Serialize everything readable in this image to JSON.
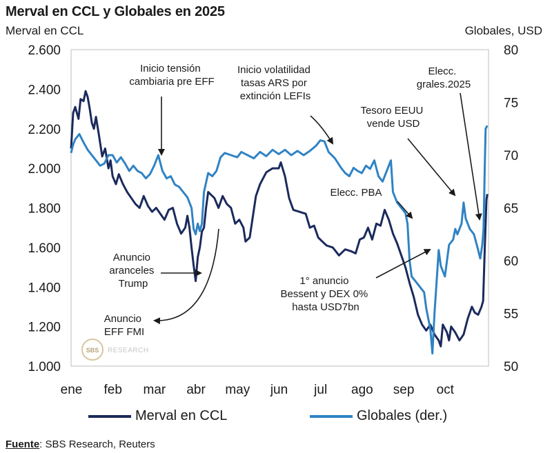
{
  "title": "Merval en CCL y Globales en 2025",
  "y_left_label": "Merval en CCL",
  "y_right_label": "Globales, USD",
  "source_label": "Fuente",
  "source_text": ": SBS Research, Reuters",
  "watermark": {
    "logo": "SBS",
    "text": "RESEARCH"
  },
  "colors": {
    "merval": "#1b2a5c",
    "globales": "#2f83c4",
    "axis": "#bdbdbd",
    "text": "#1a1a1a"
  },
  "chart_data": {
    "type": "line",
    "title": "Merval en CCL y Globales en 2025",
    "x_unit": "months since Jan 1, 2025",
    "xlim": [
      0,
      10.05
    ],
    "month_ticks": [
      {
        "label": "ene",
        "x": 0
      },
      {
        "label": "feb",
        "x": 1
      },
      {
        "label": "mar",
        "x": 2
      },
      {
        "label": "abr",
        "x": 3
      },
      {
        "label": "may",
        "x": 4
      },
      {
        "label": "jun",
        "x": 5
      },
      {
        "label": "jul",
        "x": 6
      },
      {
        "label": "ago",
        "x": 7
      },
      {
        "label": "sep",
        "x": 8
      },
      {
        "label": "oct",
        "x": 9
      }
    ],
    "y_left": {
      "label": "Merval en CCL",
      "ylim": [
        1000,
        2600
      ],
      "ticks": [
        "1.000",
        "1.200",
        "1.400",
        "1.600",
        "1.800",
        "2.000",
        "2.200",
        "2.400",
        "2.600"
      ],
      "tick_values": [
        1000,
        1200,
        1400,
        1600,
        1800,
        2000,
        2200,
        2400,
        2600
      ]
    },
    "y_right": {
      "label": "Globales, USD",
      "ylim": [
        50,
        80
      ],
      "ticks": [
        "50",
        "55",
        "60",
        "65",
        "70",
        "75",
        "80"
      ],
      "tick_values": [
        50,
        55,
        60,
        65,
        70,
        75,
        80
      ]
    },
    "series": [
      {
        "name": "Merval en CCL",
        "axis": "left",
        "legend": "Merval en CCL",
        "points": [
          [
            0,
            2100
          ],
          [
            0.05,
            2280
          ],
          [
            0.1,
            2310
          ],
          [
            0.18,
            2250
          ],
          [
            0.23,
            2350
          ],
          [
            0.3,
            2340
          ],
          [
            0.35,
            2390
          ],
          [
            0.4,
            2360
          ],
          [
            0.45,
            2300
          ],
          [
            0.5,
            2230
          ],
          [
            0.55,
            2200
          ],
          [
            0.6,
            2260
          ],
          [
            0.67,
            2170
          ],
          [
            0.75,
            2060
          ],
          [
            0.82,
            2100
          ],
          [
            0.9,
            2000
          ],
          [
            0.95,
            2040
          ],
          [
            1.0,
            1960
          ],
          [
            1.08,
            1920
          ],
          [
            1.15,
            1970
          ],
          [
            1.25,
            1920
          ],
          [
            1.35,
            1880
          ],
          [
            1.45,
            1850
          ],
          [
            1.55,
            1820
          ],
          [
            1.65,
            1800
          ],
          [
            1.75,
            1860
          ],
          [
            1.85,
            1810
          ],
          [
            1.95,
            1780
          ],
          [
            2.05,
            1800
          ],
          [
            2.15,
            1770
          ],
          [
            2.25,
            1740
          ],
          [
            2.35,
            1790
          ],
          [
            2.45,
            1800
          ],
          [
            2.55,
            1720
          ],
          [
            2.65,
            1670
          ],
          [
            2.75,
            1700
          ],
          [
            2.8,
            1760
          ],
          [
            2.85,
            1700
          ],
          [
            2.9,
            1600
          ],
          [
            2.95,
            1510
          ],
          [
            3.0,
            1430
          ],
          [
            3.05,
            1550
          ],
          [
            3.1,
            1600
          ],
          [
            3.15,
            1680
          ],
          [
            3.2,
            1700
          ],
          [
            3.25,
            1800
          ],
          [
            3.3,
            1880
          ],
          [
            3.4,
            1860
          ],
          [
            3.45,
            1850
          ],
          [
            3.55,
            1800
          ],
          [
            3.65,
            1860
          ],
          [
            3.75,
            1820
          ],
          [
            3.85,
            1800
          ],
          [
            3.95,
            1720
          ],
          [
            4.05,
            1740
          ],
          [
            4.15,
            1700
          ],
          [
            4.2,
            1630
          ],
          [
            4.3,
            1650
          ],
          [
            4.35,
            1720
          ],
          [
            4.45,
            1860
          ],
          [
            4.55,
            1920
          ],
          [
            4.7,
            1980
          ],
          [
            4.85,
            2000
          ],
          [
            5.0,
            2000
          ],
          [
            5.05,
            2030
          ],
          [
            5.15,
            1960
          ],
          [
            5.25,
            1850
          ],
          [
            5.35,
            1790
          ],
          [
            5.5,
            1780
          ],
          [
            5.65,
            1770
          ],
          [
            5.75,
            1700
          ],
          [
            5.85,
            1710
          ],
          [
            5.95,
            1650
          ],
          [
            6.05,
            1630
          ],
          [
            6.15,
            1610
          ],
          [
            6.3,
            1600
          ],
          [
            6.45,
            1560
          ],
          [
            6.6,
            1590
          ],
          [
            6.75,
            1580
          ],
          [
            6.85,
            1570
          ],
          [
            6.95,
            1640
          ],
          [
            7.05,
            1650
          ],
          [
            7.15,
            1700
          ],
          [
            7.25,
            1640
          ],
          [
            7.35,
            1720
          ],
          [
            7.45,
            1710
          ],
          [
            7.55,
            1790
          ],
          [
            7.65,
            1740
          ],
          [
            7.75,
            1670
          ],
          [
            7.85,
            1620
          ],
          [
            7.95,
            1560
          ],
          [
            8.05,
            1500
          ],
          [
            8.15,
            1420
          ],
          [
            8.25,
            1350
          ],
          [
            8.35,
            1260
          ],
          [
            8.45,
            1210
          ],
          [
            8.55,
            1180
          ],
          [
            8.65,
            1210
          ],
          [
            8.75,
            1160
          ],
          [
            8.85,
            1130
          ],
          [
            8.9,
            1100
          ],
          [
            8.95,
            1210
          ],
          [
            9.05,
            1170
          ],
          [
            9.1,
            1130
          ],
          [
            9.15,
            1200
          ],
          [
            9.25,
            1170
          ],
          [
            9.35,
            1130
          ],
          [
            9.45,
            1160
          ],
          [
            9.55,
            1240
          ],
          [
            9.65,
            1300
          ],
          [
            9.72,
            1270
          ],
          [
            9.8,
            1260
          ],
          [
            9.88,
            1300
          ],
          [
            9.92,
            1330
          ],
          [
            9.96,
            1600
          ],
          [
            10.0,
            1840
          ],
          [
            10.02,
            1870
          ]
        ]
      },
      {
        "name": "Globales (der.)",
        "axis": "right",
        "legend": "Globales (der.)",
        "points": [
          [
            0,
            70.2
          ],
          [
            0.05,
            71.0
          ],
          [
            0.1,
            71.5
          ],
          [
            0.2,
            72.0
          ],
          [
            0.3,
            71.2
          ],
          [
            0.4,
            70.5
          ],
          [
            0.5,
            70.0
          ],
          [
            0.6,
            69.5
          ],
          [
            0.7,
            69.0
          ],
          [
            0.8,
            69.2
          ],
          [
            0.9,
            70.0
          ],
          [
            1.0,
            70.0
          ],
          [
            1.1,
            69.3
          ],
          [
            1.2,
            69.8
          ],
          [
            1.3,
            69.2
          ],
          [
            1.4,
            68.5
          ],
          [
            1.5,
            69.0
          ],
          [
            1.6,
            68.5
          ],
          [
            1.7,
            68.3
          ],
          [
            1.8,
            67.8
          ],
          [
            1.9,
            68.2
          ],
          [
            2.0,
            69.0
          ],
          [
            2.1,
            70.0
          ],
          [
            2.2,
            68.5
          ],
          [
            2.3,
            67.8
          ],
          [
            2.4,
            68.0
          ],
          [
            2.5,
            67.2
          ],
          [
            2.6,
            67.0
          ],
          [
            2.7,
            66.5
          ],
          [
            2.8,
            66.0
          ],
          [
            2.9,
            65.0
          ],
          [
            2.95,
            63.0
          ],
          [
            3.0,
            62.5
          ],
          [
            3.05,
            63.5
          ],
          [
            3.1,
            62.8
          ],
          [
            3.15,
            63.5
          ],
          [
            3.2,
            66.5
          ],
          [
            3.3,
            68.3
          ],
          [
            3.4,
            68.0
          ],
          [
            3.5,
            68.5
          ],
          [
            3.6,
            69.8
          ],
          [
            3.7,
            70.2
          ],
          [
            3.85,
            70.0
          ],
          [
            4.0,
            69.8
          ],
          [
            4.1,
            70.3
          ],
          [
            4.25,
            70.0
          ],
          [
            4.4,
            69.7
          ],
          [
            4.55,
            70.3
          ],
          [
            4.7,
            69.9
          ],
          [
            4.85,
            70.5
          ],
          [
            5.0,
            70.1
          ],
          [
            5.15,
            70.5
          ],
          [
            5.3,
            70.0
          ],
          [
            5.45,
            70.4
          ],
          [
            5.6,
            70.0
          ],
          [
            5.75,
            70.4
          ],
          [
            5.9,
            70.9
          ],
          [
            6.0,
            71.4
          ],
          [
            6.1,
            71.3
          ],
          [
            6.2,
            70.3
          ],
          [
            6.35,
            69.7
          ],
          [
            6.5,
            68.8
          ],
          [
            6.6,
            68.3
          ],
          [
            6.7,
            68.0
          ],
          [
            6.8,
            68.8
          ],
          [
            6.9,
            68.5
          ],
          [
            7.0,
            68.3
          ],
          [
            7.1,
            69.0
          ],
          [
            7.2,
            68.7
          ],
          [
            7.3,
            69.5
          ],
          [
            7.4,
            68.0
          ],
          [
            7.5,
            67.5
          ],
          [
            7.6,
            68.5
          ],
          [
            7.7,
            69.5
          ],
          [
            7.75,
            66.5
          ],
          [
            7.85,
            65.5
          ],
          [
            7.95,
            65.0
          ],
          [
            8.05,
            64.5
          ],
          [
            8.1,
            63.5
          ],
          [
            8.15,
            60.0
          ],
          [
            8.2,
            58.5
          ],
          [
            8.3,
            58.0
          ],
          [
            8.4,
            57.5
          ],
          [
            8.5,
            57.0
          ],
          [
            8.55,
            55.5
          ],
          [
            8.6,
            54.5
          ],
          [
            8.65,
            53.5
          ],
          [
            8.7,
            51.2
          ],
          [
            8.75,
            55.0
          ],
          [
            8.85,
            61.0
          ],
          [
            8.9,
            59.5
          ],
          [
            9.0,
            58.5
          ],
          [
            9.1,
            61.5
          ],
          [
            9.2,
            62.0
          ],
          [
            9.25,
            63.0
          ],
          [
            9.3,
            62.5
          ],
          [
            9.4,
            63.5
          ],
          [
            9.45,
            65.5
          ],
          [
            9.5,
            64.0
          ],
          [
            9.6,
            63.0
          ],
          [
            9.7,
            62.5
          ],
          [
            9.8,
            61.0
          ],
          [
            9.85,
            60.2
          ],
          [
            9.9,
            61.5
          ],
          [
            9.93,
            63.0
          ],
          [
            9.96,
            69.0
          ],
          [
            9.98,
            72.5
          ],
          [
            10.02,
            72.8
          ]
        ]
      }
    ],
    "annotations": [
      {
        "id": "tension",
        "lines": [
          "Inicio tensión",
          "cambiaria pre EFF"
        ]
      },
      {
        "id": "volatilidad",
        "lines": [
          "Inicio volatilidad",
          "tasas ARS por",
          "extinción LEFIs"
        ]
      },
      {
        "id": "elecc-grales",
        "lines": [
          "Elecc.",
          "grales.2025"
        ]
      },
      {
        "id": "tesoro",
        "lines": [
          "Tesoro EEUU",
          "vende USD"
        ]
      },
      {
        "id": "elecc-pba",
        "lines": [
          "Elecc. PBA"
        ]
      },
      {
        "id": "aranceles",
        "lines": [
          "Anuncio",
          "aranceles",
          "Trump"
        ]
      },
      {
        "id": "bessent",
        "lines": [
          "1° anuncio",
          "Bessent y DEX 0%",
          "hasta USD7bn"
        ]
      },
      {
        "id": "fmi",
        "lines": [
          "Anuncio",
          "EFF FMI"
        ]
      }
    ]
  }
}
